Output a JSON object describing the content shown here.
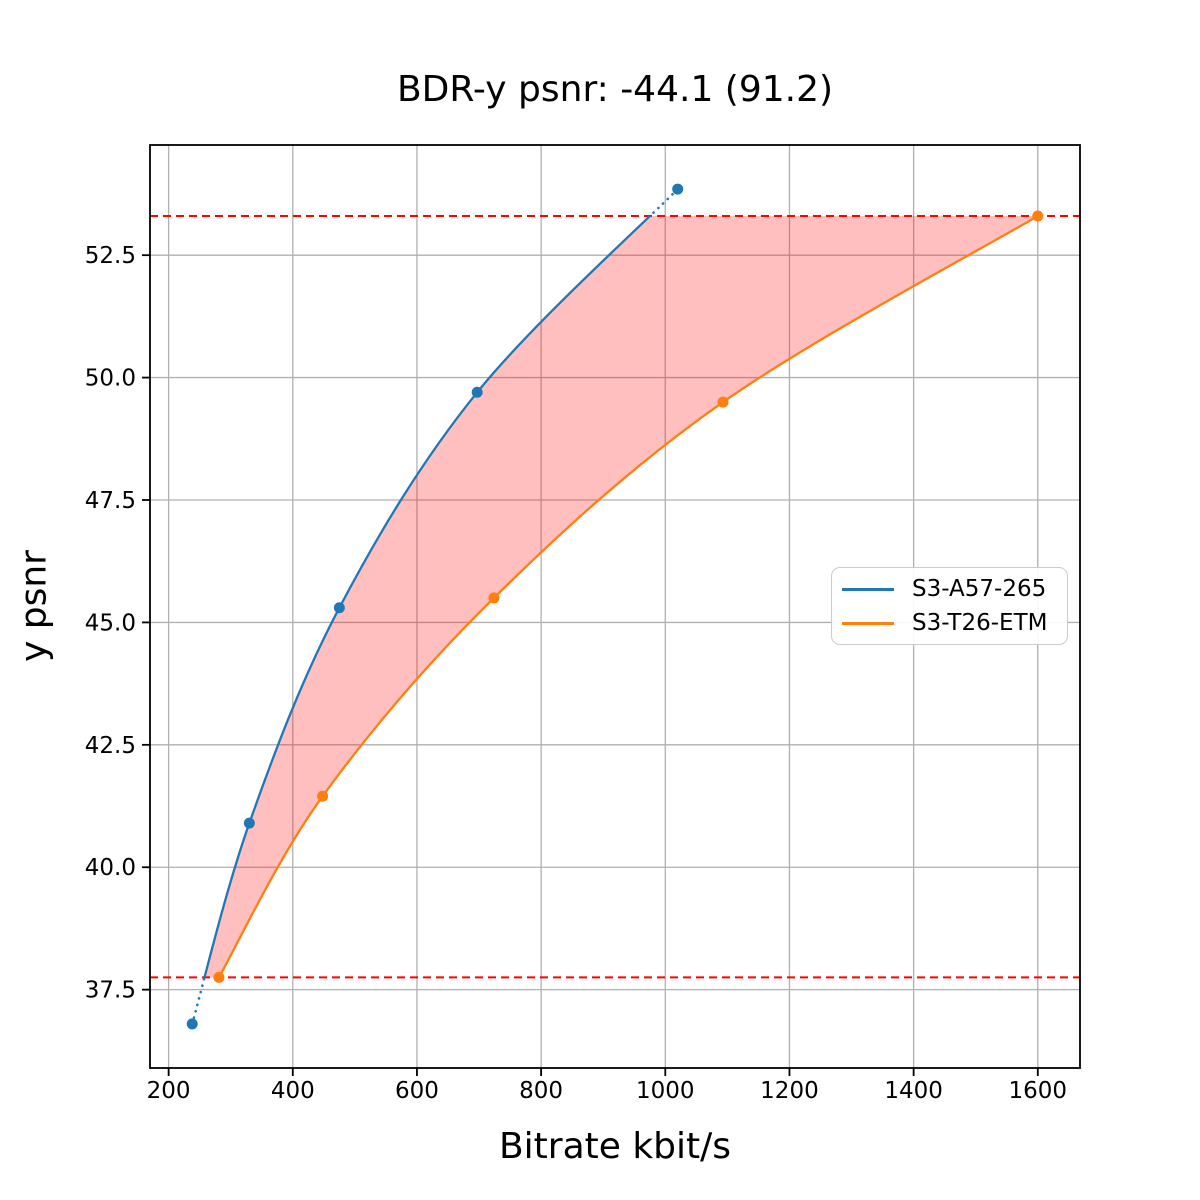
{
  "chart_data": {
    "type": "line",
    "title": "BDR-y psnr: -44.1 (91.2)",
    "xlabel": "Bitrate kbit/s",
    "ylabel": "y psnr",
    "xlim": [
      170,
      1668
    ],
    "ylim": [
      35.9,
      54.75
    ],
    "x_ticks": [
      200,
      400,
      600,
      800,
      1000,
      1200,
      1400,
      1600
    ],
    "x_tick_labels": [
      "200",
      "400",
      "600",
      "800",
      "1000",
      "1200",
      "1400",
      "1600"
    ],
    "y_ticks": [
      37.5,
      40.0,
      42.5,
      45.0,
      47.5,
      50.0,
      52.5
    ],
    "y_tick_labels": [
      "37.5",
      "40.0",
      "42.5",
      "45.0",
      "47.5",
      "50.0",
      "52.5"
    ],
    "grid": true,
    "grid_color": "#b0b0b0",
    "spine_color": "#000000",
    "series": [
      {
        "name": "S3-A57-265",
        "color": "#1f77b4",
        "marker": "circle",
        "x": [
          238,
          330,
          475,
          697,
          1020
        ],
        "y": [
          36.8,
          40.9,
          45.3,
          49.7,
          53.85
        ],
        "line_style": "solid inside integration band, dotted outside band"
      },
      {
        "name": "S3-T26-ETM",
        "color": "#ff7f0e",
        "marker": "circle",
        "x": [
          281,
          448,
          724,
          1093,
          1600
        ],
        "y": [
          37.75,
          41.45,
          45.5,
          49.5,
          53.3
        ],
        "line_style": "solid"
      }
    ],
    "integration_band": {
      "lower_psnr": 37.75,
      "upper_psnr": 53.3,
      "line_color": "#ff0000",
      "line_style": "dashed"
    },
    "fill_between": {
      "color": "#ff0000",
      "alpha": 0.25
    },
    "legend": {
      "position": "center right",
      "entries": [
        "S3-A57-265",
        "S3-T26-ETM"
      ]
    }
  }
}
